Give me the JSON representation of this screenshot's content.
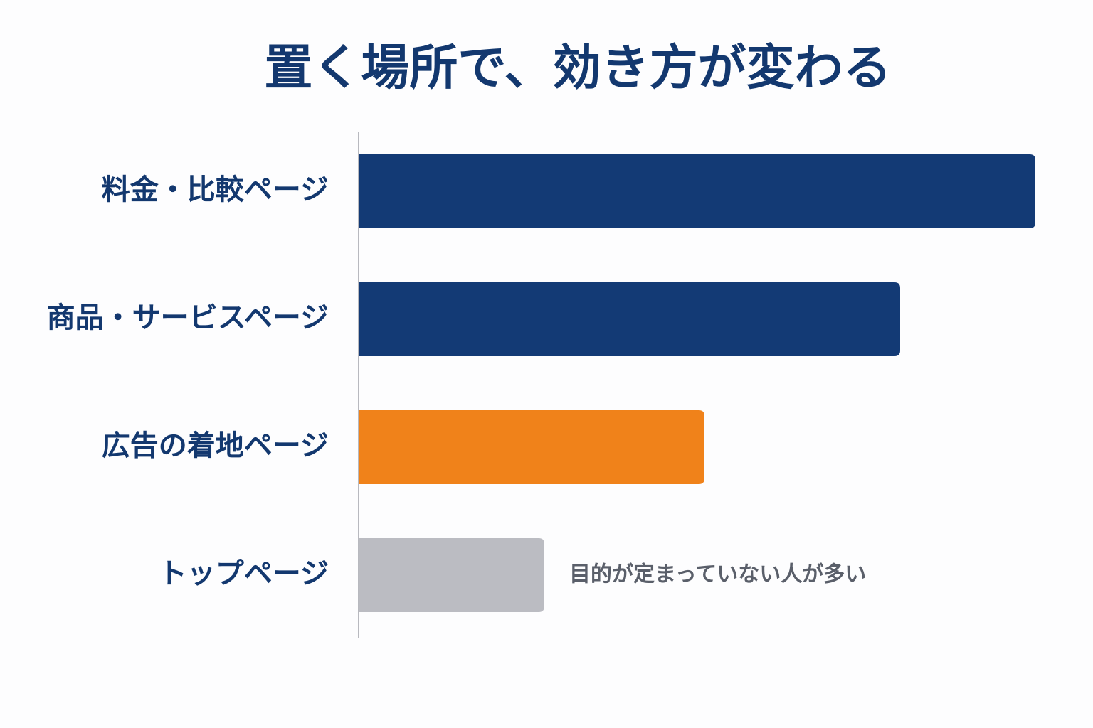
{
  "chart_data": {
    "type": "bar",
    "orientation": "horizontal",
    "title": "置く場所で、効き方が変わる",
    "categories": [
      "料金・比較ページ",
      "商品・サービスページ",
      "広告の着地ページ",
      "トップページ"
    ],
    "values": [
      95,
      76,
      48.5,
      26
    ],
    "colors": [
      "#133a75",
      "#133a75",
      "#f0821a",
      "#bbbcc2"
    ],
    "xlim": [
      0,
      100
    ],
    "annotations": [
      {
        "category": 3,
        "text": "目的が定まっていない人が多い"
      }
    ]
  }
}
